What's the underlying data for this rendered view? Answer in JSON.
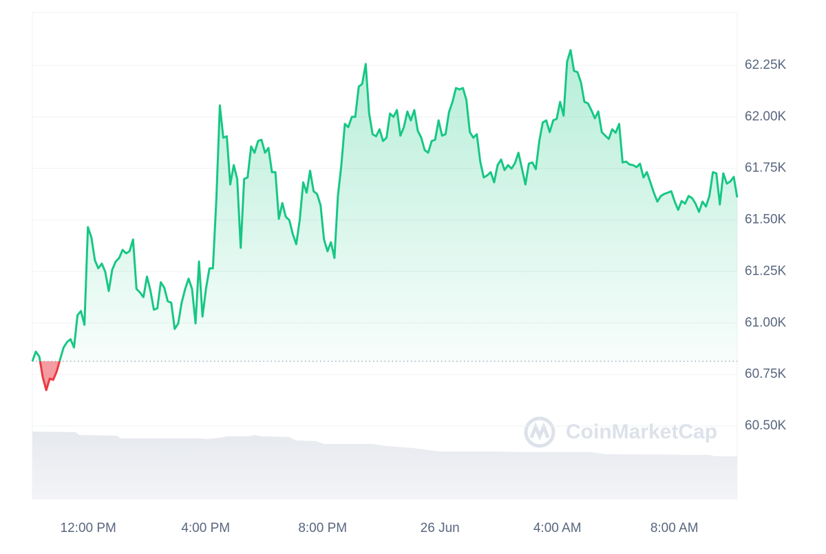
{
  "chart_data": {
    "type": "line",
    "watermark": "CoinMarketCap",
    "up_color": "#16c784",
    "down_color": "#ea3943",
    "baseline": 60814,
    "values": [
      60814,
      60861,
      60837,
      60737,
      60674,
      60730,
      60724,
      60764,
      60824,
      60881,
      60907,
      60921,
      60881,
      61038,
      61058,
      60991,
      61465,
      61415,
      61305,
      61265,
      61288,
      61248,
      61155,
      61258,
      61298,
      61315,
      61355,
      61338,
      61348,
      61405,
      61165,
      61148,
      61125,
      61225,
      61158,
      61064,
      61071,
      61198,
      61171,
      61105,
      61098,
      60971,
      60998,
      61098,
      61165,
      61215,
      61165,
      60998,
      61298,
      61031,
      61165,
      61265,
      61265,
      61599,
      62056,
      61899,
      61906,
      61672,
      61766,
      61699,
      61365,
      61699,
      61706,
      61856,
      61826,
      61883,
      61889,
      61826,
      61849,
      61732,
      61732,
      61505,
      61582,
      61515,
      61499,
      61432,
      61382,
      61499,
      61682,
      61632,
      61739,
      61639,
      61626,
      61572,
      61405,
      61348,
      61392,
      61315,
      61616,
      61766,
      61966,
      61950,
      62000,
      62000,
      62147,
      62160,
      62257,
      62016,
      61916,
      61906,
      61940,
      61883,
      61899,
      62016,
      62000,
      62033,
      61909,
      61950,
      62026,
      61983,
      62033,
      61933,
      61899,
      61839,
      61826,
      61883,
      61889,
      61983,
      61909,
      61916,
      62023,
      62073,
      62140,
      62133,
      62140,
      62083,
      61926,
      61899,
      61916,
      61783,
      61706,
      61716,
      61732,
      61682,
      61766,
      61793,
      61742,
      61766,
      61749,
      61776,
      61826,
      61749,
      61672,
      61773,
      61779,
      61746,
      61883,
      61973,
      61983,
      61926,
      61983,
      61990,
      62073,
      62006,
      62267,
      62324,
      62223,
      62217,
      62167,
      62073,
      62066,
      62033,
      61993,
      62026,
      61926,
      61909,
      61893,
      61940,
      61923,
      61966,
      61779,
      61783,
      61769,
      61766,
      61756,
      61773,
      61706,
      61732,
      61682,
      61632,
      61589,
      61616,
      61626,
      61632,
      61639,
      61589,
      61549,
      61592,
      61579,
      61616,
      61606,
      61579,
      61539,
      61589,
      61565,
      61616,
      61732,
      61726,
      61575,
      61726,
      61676,
      61686,
      61709,
      61609
    ],
    "xlim": [
      0,
      203
    ],
    "xticks": [
      {
        "value": 16.1,
        "label": "12:00 PM"
      },
      {
        "value": 49.9,
        "label": "4:00 PM"
      },
      {
        "value": 83.6,
        "label": "8:00 PM"
      },
      {
        "value": 117.4,
        "label": "26 Jun"
      },
      {
        "value": 151.2,
        "label": "4:00 AM"
      },
      {
        "value": 184.9,
        "label": "8:00 AM"
      }
    ],
    "ylim": [
      60146,
      62507
    ],
    "yticks": [
      {
        "value": 60500,
        "label": "60.50K"
      },
      {
        "value": 60750,
        "label": "60.75K"
      },
      {
        "value": 61000,
        "label": "61.00K"
      },
      {
        "value": 61250,
        "label": "61.25K"
      },
      {
        "value": 61500,
        "label": "61.50K"
      },
      {
        "value": 61750,
        "label": "61.75K"
      },
      {
        "value": 62000,
        "label": "62.00K"
      },
      {
        "value": 62250,
        "label": "62.25K"
      }
    ],
    "grid": true
  }
}
